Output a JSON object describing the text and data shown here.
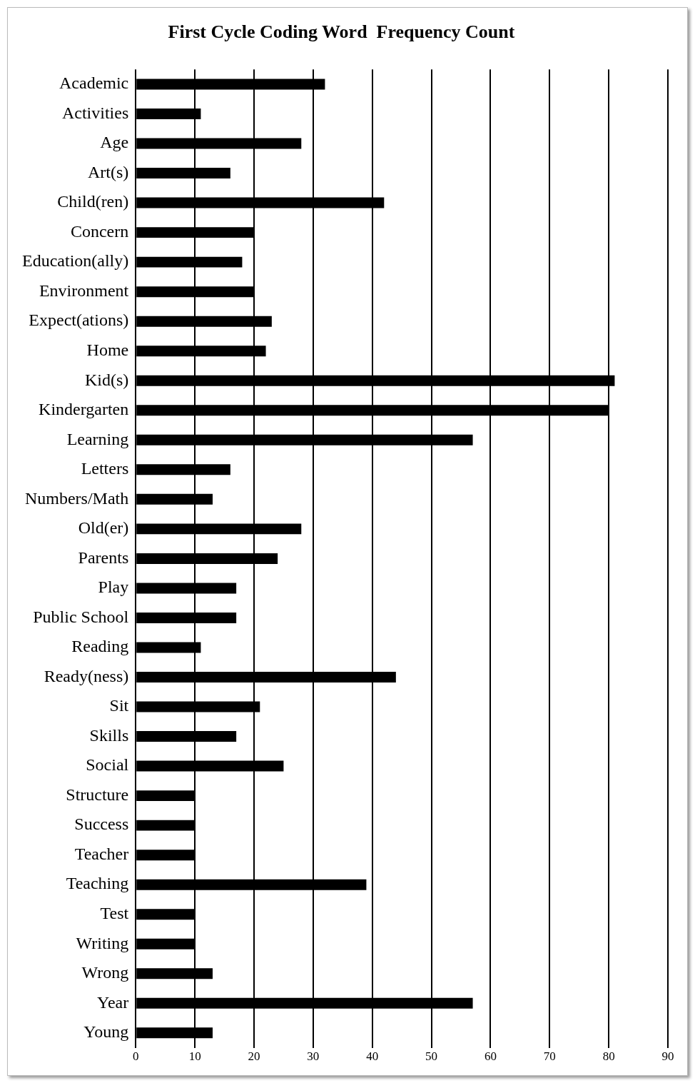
{
  "chart_data": {
    "type": "bar",
    "orientation": "horizontal",
    "title": "First Cycle Coding Word  Frequency Count",
    "categories": [
      "Academic",
      "Activities",
      "Age",
      "Art(s)",
      "Child(ren)",
      "Concern",
      "Education(ally)",
      "Environment",
      "Expect(ations)",
      "Home",
      "Kid(s)",
      "Kindergarten",
      "Learning",
      "Letters",
      "Numbers/Math",
      "Old(er)",
      "Parents",
      "Play",
      "Public School",
      "Reading",
      "Ready(ness)",
      "Sit",
      "Skills",
      "Social",
      "Structure",
      "Success",
      "Teacher",
      "Teaching",
      "Test",
      "Writing",
      "Wrong",
      "Year",
      "Young"
    ],
    "values": [
      32,
      11,
      28,
      16,
      42,
      20,
      18,
      20,
      23,
      22,
      81,
      80,
      57,
      16,
      13,
      28,
      24,
      17,
      17,
      11,
      44,
      21,
      17,
      25,
      10,
      10,
      10,
      39,
      10,
      10,
      13,
      57,
      13
    ],
    "color": "#000000",
    "xlim": [
      0,
      90
    ],
    "xticks": [
      0,
      10,
      20,
      30,
      40,
      50,
      60,
      70,
      80,
      90
    ],
    "grid": "x",
    "legend": false
  }
}
